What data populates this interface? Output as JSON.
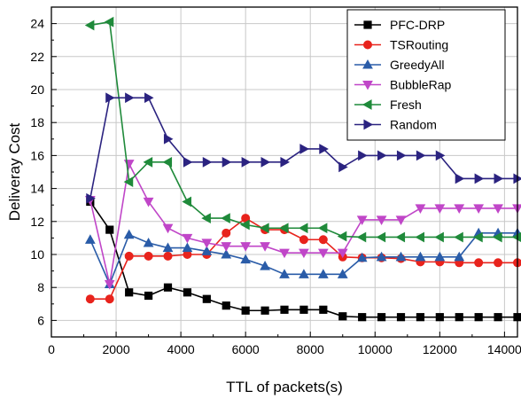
{
  "chart_data": {
    "type": "line",
    "xlabel": "TTL of packets(s)",
    "ylabel": "Deliveray Cost",
    "xlim": [
      0,
      14400
    ],
    "ylim": [
      5,
      25
    ],
    "xticks": [
      0,
      2000,
      4000,
      6000,
      8000,
      10000,
      12000,
      14000
    ],
    "yticks": [
      6,
      8,
      10,
      12,
      14,
      16,
      18,
      20,
      22,
      24
    ],
    "grid": true,
    "legend_position": "top-right",
    "x": [
      1200,
      1800,
      2400,
      3000,
      3600,
      4200,
      4800,
      5400,
      6000,
      6600,
      7200,
      7800,
      8400,
      9000,
      9600,
      10200,
      10800,
      11400,
      12000,
      12600,
      13200,
      13800,
      14400
    ],
    "series": [
      {
        "name": "PFC-DRP",
        "color": "#000000",
        "marker": "square",
        "values": [
          13.2,
          11.5,
          7.7,
          7.5,
          8.0,
          7.7,
          7.3,
          6.9,
          6.6,
          6.6,
          6.65,
          6.65,
          6.65,
          6.25,
          6.2,
          6.2,
          6.2,
          6.2,
          6.2,
          6.2,
          6.2,
          6.2,
          6.2
        ]
      },
      {
        "name": "TSRouting",
        "color": "#e8231c",
        "marker": "circle",
        "values": [
          7.3,
          7.3,
          9.9,
          9.9,
          9.9,
          10.0,
          10.0,
          11.3,
          12.2,
          11.5,
          11.5,
          10.9,
          10.9,
          9.85,
          9.8,
          9.8,
          9.75,
          9.55,
          9.55,
          9.5,
          9.5,
          9.5,
          9.5
        ]
      },
      {
        "name": "GreedyAll",
        "color": "#2a5ca8",
        "marker": "triangle-up",
        "values": [
          10.9,
          8.2,
          11.2,
          10.7,
          10.4,
          10.4,
          10.2,
          10.0,
          9.7,
          9.3,
          8.8,
          8.8,
          8.8,
          8.8,
          9.8,
          9.85,
          9.85,
          9.85,
          9.85,
          9.85,
          11.3,
          11.3,
          11.3
        ]
      },
      {
        "name": "BubbleRap",
        "color": "#c046c8",
        "marker": "triangle-down",
        "values": [
          13.3,
          8.2,
          15.5,
          13.2,
          11.6,
          11.0,
          10.7,
          10.5,
          10.5,
          10.5,
          10.1,
          10.1,
          10.1,
          10.1,
          12.1,
          12.1,
          12.1,
          12.8,
          12.8,
          12.8,
          12.8,
          12.8,
          12.8
        ]
      },
      {
        "name": "Fresh",
        "color": "#1f8a3a",
        "marker": "triangle-left",
        "values": [
          23.9,
          24.1,
          14.4,
          15.6,
          15.6,
          13.2,
          12.2,
          12.2,
          11.8,
          11.6,
          11.6,
          11.6,
          11.6,
          11.1,
          11.05,
          11.05,
          11.05,
          11.05,
          11.05,
          11.05,
          11.05,
          11.05,
          11.05
        ]
      },
      {
        "name": "Random",
        "color": "#2b2380",
        "marker": "triangle-right",
        "values": [
          13.4,
          19.5,
          19.5,
          19.5,
          17.0,
          15.6,
          15.6,
          15.6,
          15.6,
          15.6,
          15.6,
          16.4,
          16.4,
          15.3,
          16.0,
          16.0,
          16.0,
          16.0,
          16.0,
          14.6,
          14.6,
          14.6,
          14.6
        ]
      }
    ]
  }
}
